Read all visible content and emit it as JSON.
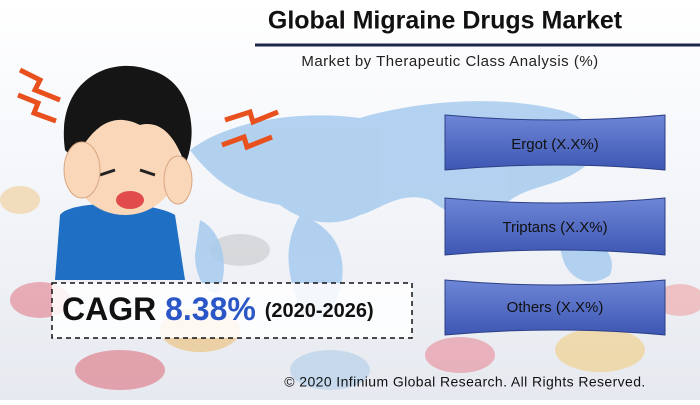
{
  "header": {
    "title": "Global Migraine Drugs Market",
    "subtitle": "Market by Therapeutic Class Analysis (%)"
  },
  "segments": [
    {
      "label": "Ergot (X.X%)"
    },
    {
      "label": "Triptans (X.X%)"
    },
    {
      "label": "Others (X.X%)"
    }
  ],
  "cagr": {
    "label": "CAGR",
    "value": "8.38%",
    "period": "(2020-2026)"
  },
  "footer": {
    "copyright": "© 2020 Infinium Global Research. All Rights Reserved."
  }
}
